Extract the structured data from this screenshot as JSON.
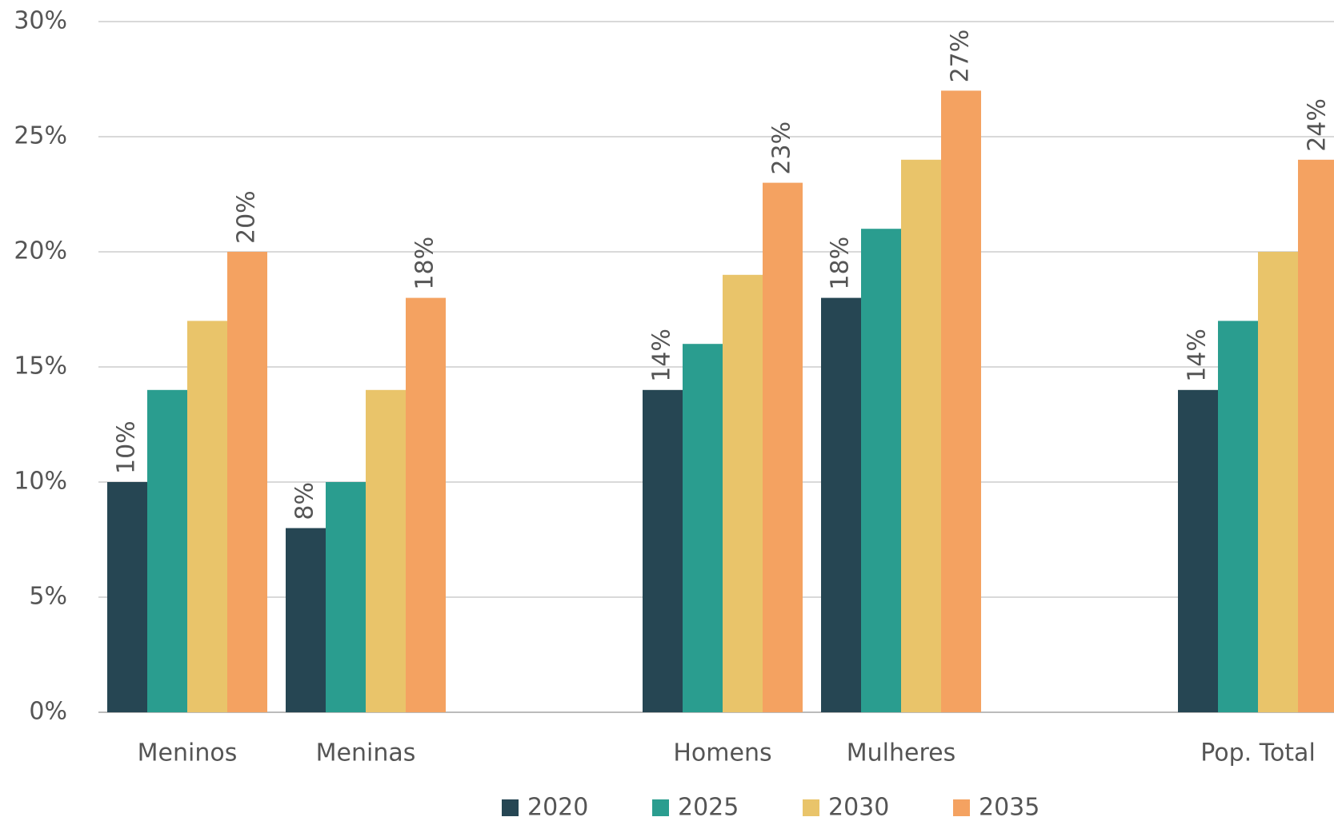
{
  "chart_data": {
    "type": "bar",
    "categories": [
      "Meninos",
      "Meninas",
      null,
      "Homens",
      "Mulheres",
      null,
      "Pop. Total"
    ],
    "series": [
      {
        "name": "2020",
        "color": "#264653",
        "values": [
          10,
          8,
          null,
          14,
          18,
          null,
          14
        ],
        "value_labels": [
          "10%",
          "8%",
          null,
          "14%",
          "18%",
          null,
          "14%"
        ]
      },
      {
        "name": "2025",
        "color": "#2a9d8f",
        "values": [
          14,
          10,
          null,
          16,
          21,
          null,
          17
        ]
      },
      {
        "name": "2030",
        "color": "#e9c46a",
        "values": [
          17,
          14,
          null,
          19,
          24,
          null,
          20
        ]
      },
      {
        "name": "2035",
        "color": "#f4a261",
        "values": [
          20,
          18,
          null,
          23,
          27,
          null,
          24
        ],
        "value_labels": [
          "20%",
          "18%",
          null,
          "23%",
          "27%",
          null,
          "24%"
        ]
      }
    ],
    "ylim": [
      0,
      30
    ],
    "yticks": [
      {
        "value": 0,
        "label": "0%"
      },
      {
        "value": 5,
        "label": "5%"
      },
      {
        "value": 10,
        "label": "10%"
      },
      {
        "value": 15,
        "label": "15%"
      },
      {
        "value": 20,
        "label": "20%"
      },
      {
        "value": 25,
        "label": "25%"
      },
      {
        "value": 30,
        "label": "30%"
      }
    ],
    "grid": true,
    "legend": "bottom"
  }
}
